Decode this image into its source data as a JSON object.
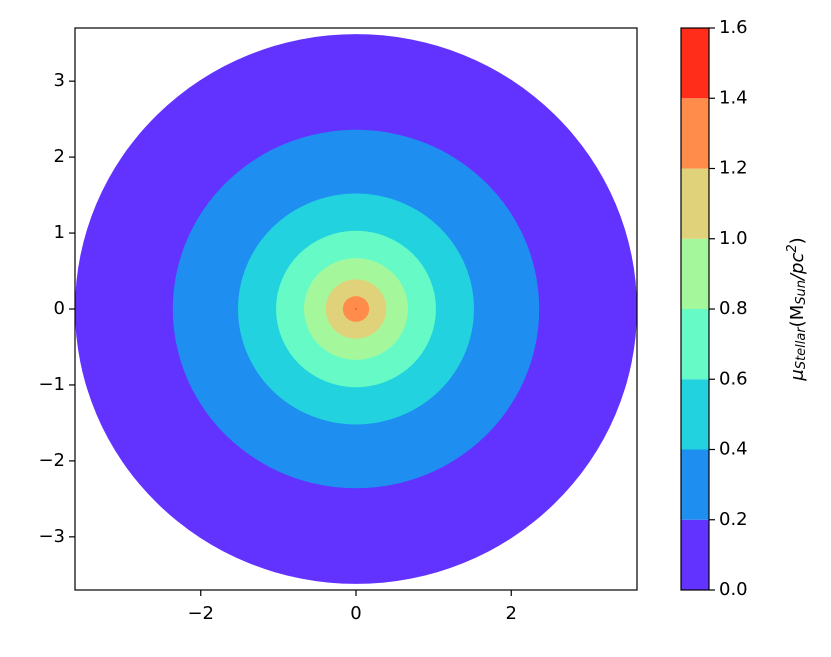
{
  "chart_data": {
    "type": "contour",
    "xlim": [
      -3.62,
      3.62
    ],
    "ylim": [
      -3.7,
      3.7
    ],
    "xticks": [
      {
        "value": -2,
        "label": "−2"
      },
      0,
      2
    ],
    "yticks": [
      {
        "value": -3,
        "label": "−3"
      },
      {
        "value": -2,
        "label": "−2"
      },
      {
        "value": -1,
        "label": "−1"
      },
      0,
      1,
      2,
      3
    ],
    "radii": [
      3.62,
      2.36,
      1.52,
      1.03,
      0.67,
      0.39,
      0.17,
      0.01
    ],
    "colors": [
      "#6233ff",
      "#1f8ef1",
      "#22d3df",
      "#66fbc6",
      "#a4f89b",
      "#e0d27a",
      "#ff8c4b",
      "#ff2d1a"
    ],
    "cbar_ticks": [
      {
        "value": 0,
        "label": "0.0"
      },
      {
        "value": 0.2,
        "label": "0.2"
      },
      {
        "value": 0.4,
        "label": "0.4"
      },
      {
        "value": 0.6,
        "label": "0.6"
      },
      {
        "value": 0.8,
        "label": "0.8"
      },
      {
        "value": 1,
        "label": "1.0"
      },
      {
        "value": 1.2,
        "label": "1.2"
      },
      {
        "value": 1.4,
        "label": "1.4"
      },
      {
        "value": 1.6,
        "label": "1.6"
      }
    ],
    "cbar_label": [
      {
        "text": "μ",
        "style": "normal"
      },
      {
        "text": "Stellar",
        "style": "sub"
      },
      {
        "text": "(M",
        "style": "normal"
      },
      {
        "text": "Sun",
        "style": "sub"
      },
      {
        "text": "/pc",
        "style": "normal"
      },
      {
        "text": "2",
        "style": "sup"
      },
      {
        "text": ")",
        "style": "normal"
      }
    ]
  }
}
